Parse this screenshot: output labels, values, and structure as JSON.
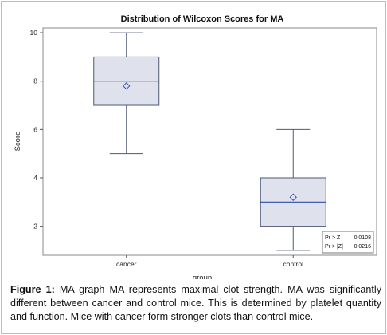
{
  "chart_data": {
    "type": "box",
    "title": "Distribution of Wilcoxon Scores for MA",
    "xlabel": "group",
    "ylabel": "Score",
    "categories": [
      "cancer",
      "control"
    ],
    "boxes": [
      {
        "category": "cancer",
        "min": 5,
        "q1": 7,
        "median": 8,
        "q3": 9,
        "max": 10,
        "mean": 7.8
      },
      {
        "category": "control",
        "min": 1,
        "q1": 2,
        "median": 3,
        "q3": 4,
        "max": 6,
        "mean": 3.2
      }
    ],
    "ylim": [
      0.8,
      10.2
    ],
    "yticks": [
      2,
      4,
      6,
      8,
      10
    ],
    "ytick_labels": [
      "2",
      "4",
      "6",
      "8",
      "10"
    ],
    "grid": false,
    "stats": [
      {
        "label": "Pr > Z",
        "value": "0.0108"
      },
      {
        "label": "Pr > |Z|",
        "value": "0.0216"
      }
    ],
    "stats_placement": "bottom-right",
    "colors": {
      "box_fill": "#dfe2ec",
      "box_stroke": "#4d5875",
      "median": "#2d4fa5",
      "mean_marker": "#3b55c2",
      "axis": "#555555"
    }
  },
  "caption": {
    "label": "Figure 1:",
    "text": "MA graph MA represents maximal clot strength. MA was significantly different between cancer and control mice.  This is determined by platelet quantity and function.  Mice with cancer form stronger clots than control mice."
  }
}
